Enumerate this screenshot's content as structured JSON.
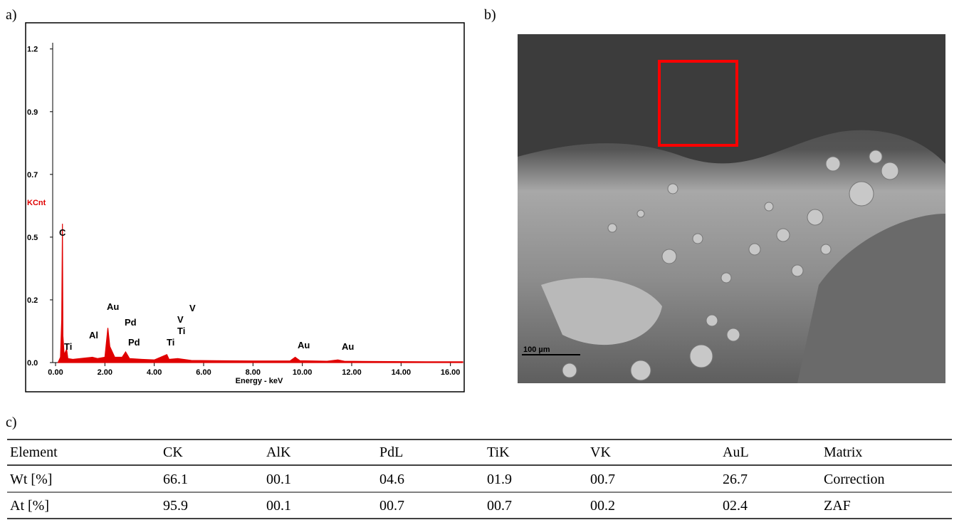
{
  "panel_labels": [
    "a)",
    "b)",
    "c)"
  ],
  "chart_data": {
    "type": "area",
    "ylabel": "KCnt",
    "xlabel": "Energy - keV",
    "xlim": [
      0,
      16.5
    ],
    "ylim": [
      0,
      1.225
    ],
    "xticks": [
      {
        "value": 0,
        "label": "0.00"
      },
      {
        "value": 2,
        "label": "2.00"
      },
      {
        "value": 4,
        "label": "4.00"
      },
      {
        "value": 6,
        "label": "6.00"
      },
      {
        "value": 8,
        "label": "8.00"
      },
      {
        "value": 10,
        "label": "10.00"
      },
      {
        "value": 12,
        "label": "12.00"
      },
      {
        "value": 14,
        "label": "14.00"
      },
      {
        "value": 16,
        "label": "16.00"
      }
    ],
    "yticks": [
      {
        "value": 0,
        "label": "0.0"
      },
      {
        "value": 0.235,
        "label": "0.2"
      },
      {
        "value": 0.47,
        "label": "0.5"
      },
      {
        "value": 0.705,
        "label": "0.7"
      },
      {
        "value": 0.94,
        "label": "0.9"
      },
      {
        "value": 1.175,
        "label": "1.2"
      }
    ],
    "x": [
      0.1,
      0.2,
      0.25,
      0.28,
      0.3,
      0.35,
      0.45,
      0.5,
      0.7,
      1.0,
      1.3,
      1.49,
      1.7,
      2.0,
      2.12,
      2.2,
      2.4,
      2.7,
      2.84,
      3.0,
      3.5,
      4.0,
      4.51,
      4.6,
      4.95,
      5.5,
      6.5,
      8.0,
      9.5,
      9.71,
      9.9,
      11.0,
      11.44,
      11.7,
      13,
      15,
      16.5
    ],
    "series": [
      {
        "color": "#e00000",
        "values": [
          0,
          0.02,
          0.16,
          0.52,
          0.1,
          0.03,
          0.05,
          0.015,
          0.012,
          0.015,
          0.018,
          0.02,
          0.015,
          0.02,
          0.13,
          0.06,
          0.02,
          0.02,
          0.04,
          0.015,
          0.012,
          0.01,
          0.03,
          0.012,
          0.015,
          0.008,
          0.007,
          0.006,
          0.006,
          0.02,
          0.007,
          0.005,
          0.01,
          0.005,
          0.004,
          0.003,
          0.003
        ]
      }
    ],
    "annotations": [
      "C",
      "Ti",
      "Al",
      "Au",
      "Pd",
      "Pd",
      "V",
      "V",
      "Ti",
      "Ti",
      "Au",
      "Au"
    ]
  },
  "image": {
    "scale_bar": "100 µm"
  },
  "table": {
    "header": [
      "Element",
      "CK",
      "AlK",
      "PdL",
      "TiK",
      "VK",
      "AuL",
      "Matrix"
    ],
    "rows": [
      [
        "Wt [%]",
        "66.1",
        "00.1",
        "04.6",
        "01.9",
        "00.7",
        "26.7",
        "Correction"
      ],
      [
        "At [%]",
        "95.9",
        "00.1",
        "00.7",
        "00.7",
        "00.2",
        "02.4",
        "ZAF"
      ]
    ]
  }
}
